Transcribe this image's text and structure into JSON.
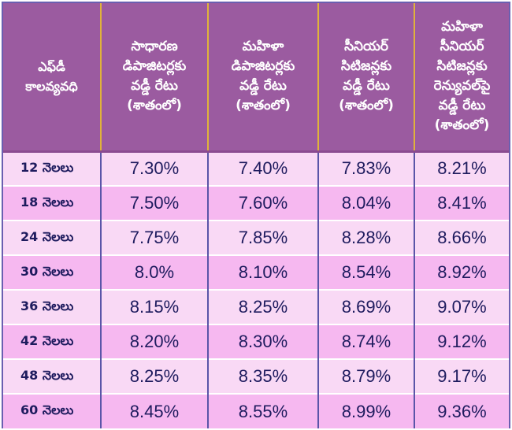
{
  "table": {
    "headers": [
      {
        "lines": [
          "ఎఫ్‌డీ",
          "కాలవ్యవధి"
        ]
      },
      {
        "lines": [
          "సాధారణ",
          "డిపాజిటర్లకు",
          "వడ్డీ రేటు",
          "(శాతంలో)"
        ]
      },
      {
        "lines": [
          "మహిళా",
          "డిపాజిటర్లకు",
          "వడ్డీ రేటు",
          "(శాతంలో)"
        ]
      },
      {
        "lines": [
          "సీనియర్",
          "సిటిజన్లకు",
          "వడ్డీ రేటు",
          "(శాతంలో)"
        ]
      },
      {
        "lines": [
          "మహిళా",
          "సీనియర్",
          "సిటిజన్లకు",
          "రెన్యువల్‌పై",
          "వడ్డీ రేటు",
          "(శాతంలో)"
        ]
      }
    ],
    "rows": [
      {
        "tenure": "12 నెలలు",
        "general": "7.30%",
        "women": "7.40%",
        "senior": "7.83%",
        "women_senior_renewal": "8.21%"
      },
      {
        "tenure": "18 నెలలు",
        "general": "7.50%",
        "women": "7.60%",
        "senior": "8.04%",
        "women_senior_renewal": "8.41%"
      },
      {
        "tenure": "24 నెలలు",
        "general": "7.75%",
        "women": "7.85%",
        "senior": "8.28%",
        "women_senior_renewal": "8.66%"
      },
      {
        "tenure": "30 నెలలు",
        "general": "8.0%",
        "women": "8.10%",
        "senior": "8.54%",
        "women_senior_renewal": "8.92%"
      },
      {
        "tenure": "36 నెలలు",
        "general": "8.15%",
        "women": "8.25%",
        "senior": "8.69%",
        "women_senior_renewal": "9.07%"
      },
      {
        "tenure": "42 నెలలు",
        "general": "8.20%",
        "women": "8.30%",
        "senior": "8.74%",
        "women_senior_renewal": "9.12%"
      },
      {
        "tenure": "48 నెలలు",
        "general": "8.25%",
        "women": "8.35%",
        "senior": "8.79%",
        "women_senior_renewal": "9.17%"
      },
      {
        "tenure": "60 నెలలు",
        "general": "8.45%",
        "women": "8.55%",
        "senior": "8.99%",
        "women_senior_renewal": "9.36%"
      }
    ]
  },
  "colors": {
    "header_bg": "#9b5ba0",
    "header_divider": "#e0b33a",
    "row_light": "#f9d9f5",
    "row_dark": "#f6b8f0",
    "text_dark": "#1e1b5e",
    "border": "#5a55a8"
  }
}
